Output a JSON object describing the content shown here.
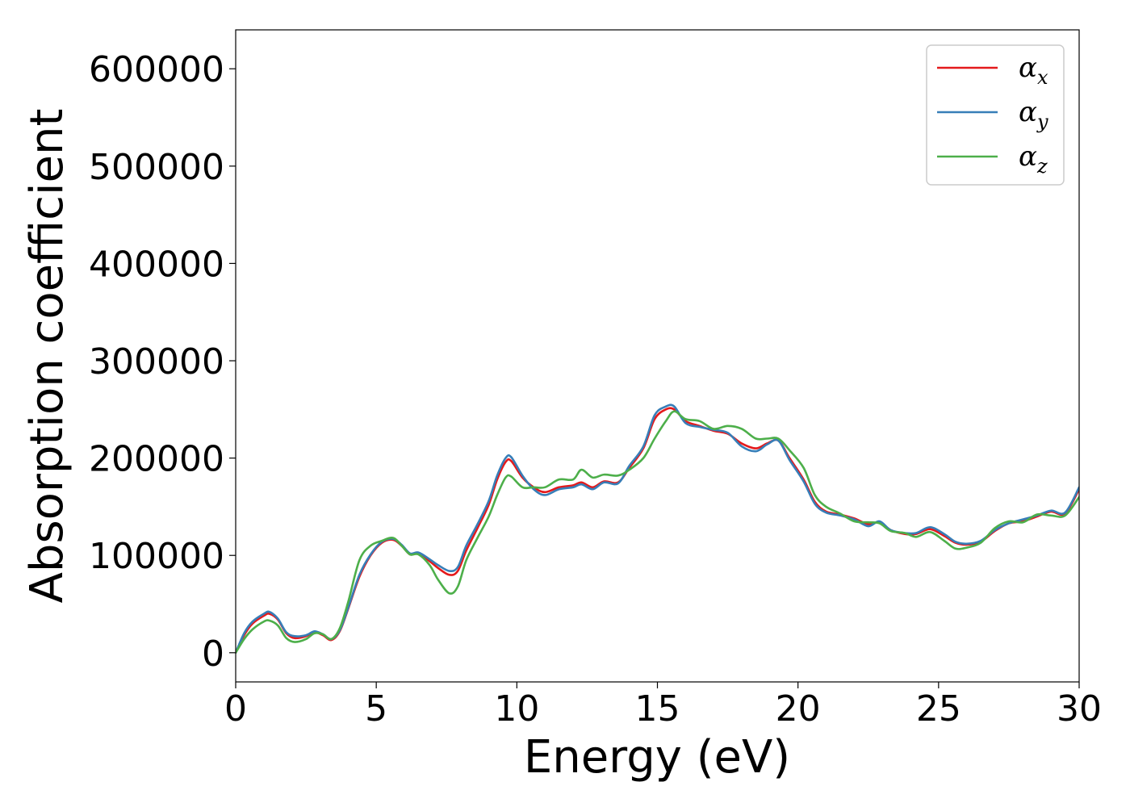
{
  "chart_data": {
    "type": "line",
    "title": "",
    "xlabel": "Energy (eV)",
    "ylabel": "Absorption coefficient",
    "xlim": [
      0,
      30
    ],
    "ylim": [
      -30000,
      640000
    ],
    "xticks": [
      0,
      5,
      10,
      15,
      20,
      25,
      30
    ],
    "yticks": [
      0,
      100000,
      200000,
      300000,
      400000,
      500000,
      600000
    ],
    "grid": false,
    "legend": "top-right",
    "series": [
      {
        "name": "α",
        "name_sub": "x",
        "color": "#e41a1c",
        "points": [
          [
            0,
            0
          ],
          [
            0.3,
            18000
          ],
          [
            0.6,
            30000
          ],
          [
            1.0,
            38000
          ],
          [
            1.2,
            40000
          ],
          [
            1.5,
            34000
          ],
          [
            1.8,
            20000
          ],
          [
            2.1,
            15000
          ],
          [
            2.5,
            17000
          ],
          [
            2.8,
            21000
          ],
          [
            3.1,
            18000
          ],
          [
            3.4,
            13000
          ],
          [
            3.7,
            22000
          ],
          [
            4.0,
            45000
          ],
          [
            4.4,
            78000
          ],
          [
            4.8,
            100000
          ],
          [
            5.2,
            113000
          ],
          [
            5.6,
            116000
          ],
          [
            5.9,
            110000
          ],
          [
            6.2,
            101000
          ],
          [
            6.5,
            102000
          ],
          [
            6.9,
            94000
          ],
          [
            7.2,
            87000
          ],
          [
            7.6,
            80000
          ],
          [
            7.9,
            84000
          ],
          [
            8.2,
            105000
          ],
          [
            8.6,
            128000
          ],
          [
            9.0,
            152000
          ],
          [
            9.3,
            178000
          ],
          [
            9.6,
            196000
          ],
          [
            9.8,
            197000
          ],
          [
            10.2,
            180000
          ],
          [
            10.6,
            170000
          ],
          [
            11.0,
            165000
          ],
          [
            11.5,
            170000
          ],
          [
            12.0,
            172000
          ],
          [
            12.3,
            175000
          ],
          [
            12.7,
            170000
          ],
          [
            13.1,
            176000
          ],
          [
            13.6,
            175000
          ],
          [
            14.0,
            190000
          ],
          [
            14.5,
            210000
          ],
          [
            14.9,
            240000
          ],
          [
            15.3,
            250000
          ],
          [
            15.6,
            250000
          ],
          [
            16.0,
            238000
          ],
          [
            16.5,
            233000
          ],
          [
            17.0,
            228000
          ],
          [
            17.5,
            225000
          ],
          [
            18.0,
            215000
          ],
          [
            18.5,
            210000
          ],
          [
            18.9,
            215000
          ],
          [
            19.3,
            218000
          ],
          [
            19.7,
            200000
          ],
          [
            20.2,
            178000
          ],
          [
            20.6,
            155000
          ],
          [
            21.0,
            145000
          ],
          [
            21.5,
            142000
          ],
          [
            22.0,
            138000
          ],
          [
            22.5,
            132000
          ],
          [
            22.9,
            134000
          ],
          [
            23.3,
            126000
          ],
          [
            23.8,
            122000
          ],
          [
            24.2,
            122000
          ],
          [
            24.7,
            127000
          ],
          [
            25.2,
            120000
          ],
          [
            25.6,
            113000
          ],
          [
            26.0,
            111000
          ],
          [
            26.5,
            114000
          ],
          [
            27.0,
            125000
          ],
          [
            27.5,
            133000
          ],
          [
            28.0,
            135000
          ],
          [
            28.5,
            140000
          ],
          [
            29.0,
            145000
          ],
          [
            29.5,
            143000
          ],
          [
            30,
            168000
          ]
        ]
      },
      {
        "name": "α",
        "name_sub": "y",
        "color": "#377eb8",
        "points": [
          [
            0,
            0
          ],
          [
            0.3,
            20000
          ],
          [
            0.6,
            32000
          ],
          [
            1.0,
            40000
          ],
          [
            1.2,
            42000
          ],
          [
            1.5,
            35000
          ],
          [
            1.8,
            21000
          ],
          [
            2.1,
            17000
          ],
          [
            2.5,
            18000
          ],
          [
            2.8,
            22000
          ],
          [
            3.1,
            19000
          ],
          [
            3.4,
            14000
          ],
          [
            3.7,
            23000
          ],
          [
            4.0,
            46000
          ],
          [
            4.4,
            80000
          ],
          [
            4.8,
            101000
          ],
          [
            5.2,
            114000
          ],
          [
            5.6,
            117000
          ],
          [
            5.9,
            111000
          ],
          [
            6.2,
            102000
          ],
          [
            6.5,
            103000
          ],
          [
            6.9,
            96000
          ],
          [
            7.2,
            90000
          ],
          [
            7.6,
            84000
          ],
          [
            7.9,
            88000
          ],
          [
            8.2,
            110000
          ],
          [
            8.6,
            132000
          ],
          [
            9.0,
            156000
          ],
          [
            9.3,
            182000
          ],
          [
            9.6,
            200000
          ],
          [
            9.8,
            201000
          ],
          [
            10.2,
            182000
          ],
          [
            10.6,
            168000
          ],
          [
            11.0,
            162000
          ],
          [
            11.5,
            168000
          ],
          [
            12.0,
            170000
          ],
          [
            12.3,
            173000
          ],
          [
            12.7,
            168000
          ],
          [
            13.1,
            175000
          ],
          [
            13.6,
            174000
          ],
          [
            14.0,
            192000
          ],
          [
            14.5,
            212000
          ],
          [
            14.9,
            244000
          ],
          [
            15.3,
            253000
          ],
          [
            15.6,
            253000
          ],
          [
            16.0,
            236000
          ],
          [
            16.5,
            232000
          ],
          [
            17.0,
            229000
          ],
          [
            17.5,
            226000
          ],
          [
            18.0,
            212000
          ],
          [
            18.5,
            207000
          ],
          [
            18.9,
            214000
          ],
          [
            19.3,
            218000
          ],
          [
            19.7,
            198000
          ],
          [
            20.2,
            176000
          ],
          [
            20.6,
            153000
          ],
          [
            21.0,
            144000
          ],
          [
            21.5,
            141000
          ],
          [
            22.0,
            137000
          ],
          [
            22.5,
            130000
          ],
          [
            22.9,
            135000
          ],
          [
            23.3,
            126000
          ],
          [
            23.8,
            123000
          ],
          [
            24.2,
            123000
          ],
          [
            24.7,
            129000
          ],
          [
            25.2,
            122000
          ],
          [
            25.6,
            114000
          ],
          [
            26.0,
            112000
          ],
          [
            26.5,
            115000
          ],
          [
            27.0,
            126000
          ],
          [
            27.5,
            133000
          ],
          [
            28.0,
            137000
          ],
          [
            28.5,
            141000
          ],
          [
            29.0,
            146000
          ],
          [
            29.5,
            144000
          ],
          [
            30,
            170000
          ]
        ]
      },
      {
        "name": "α",
        "name_sub": "z",
        "color": "#4daf4a",
        "points": [
          [
            0,
            0
          ],
          [
            0.3,
            14000
          ],
          [
            0.6,
            24000
          ],
          [
            1.0,
            32000
          ],
          [
            1.2,
            33000
          ],
          [
            1.5,
            28000
          ],
          [
            1.8,
            15000
          ],
          [
            2.1,
            11000
          ],
          [
            2.5,
            14000
          ],
          [
            2.8,
            20000
          ],
          [
            3.1,
            19000
          ],
          [
            3.4,
            14000
          ],
          [
            3.7,
            25000
          ],
          [
            4.0,
            52000
          ],
          [
            4.4,
            95000
          ],
          [
            4.8,
            110000
          ],
          [
            5.2,
            115000
          ],
          [
            5.6,
            118000
          ],
          [
            5.9,
            110000
          ],
          [
            6.2,
            101000
          ],
          [
            6.5,
            101000
          ],
          [
            6.9,
            90000
          ],
          [
            7.2,
            75000
          ],
          [
            7.6,
            61000
          ],
          [
            7.9,
            68000
          ],
          [
            8.2,
            95000
          ],
          [
            8.6,
            118000
          ],
          [
            9.0,
            140000
          ],
          [
            9.3,
            162000
          ],
          [
            9.6,
            180000
          ],
          [
            9.8,
            181000
          ],
          [
            10.2,
            170000
          ],
          [
            10.6,
            170000
          ],
          [
            11.0,
            170000
          ],
          [
            11.5,
            178000
          ],
          [
            12.0,
            178000
          ],
          [
            12.3,
            188000
          ],
          [
            12.7,
            180000
          ],
          [
            13.1,
            183000
          ],
          [
            13.6,
            182000
          ],
          [
            14.0,
            188000
          ],
          [
            14.5,
            200000
          ],
          [
            14.9,
            220000
          ],
          [
            15.3,
            238000
          ],
          [
            15.6,
            248000
          ],
          [
            16.0,
            240000
          ],
          [
            16.5,
            238000
          ],
          [
            17.0,
            230000
          ],
          [
            17.5,
            233000
          ],
          [
            18.0,
            230000
          ],
          [
            18.5,
            220000
          ],
          [
            18.9,
            220000
          ],
          [
            19.3,
            220000
          ],
          [
            19.7,
            208000
          ],
          [
            20.2,
            190000
          ],
          [
            20.6,
            162000
          ],
          [
            21.0,
            150000
          ],
          [
            21.5,
            143000
          ],
          [
            22.0,
            135000
          ],
          [
            22.5,
            134000
          ],
          [
            22.9,
            133000
          ],
          [
            23.3,
            125000
          ],
          [
            23.8,
            123000
          ],
          [
            24.2,
            119000
          ],
          [
            24.7,
            124000
          ],
          [
            25.2,
            115000
          ],
          [
            25.6,
            107000
          ],
          [
            26.0,
            108000
          ],
          [
            26.5,
            113000
          ],
          [
            27.0,
            128000
          ],
          [
            27.5,
            135000
          ],
          [
            28.0,
            134000
          ],
          [
            28.5,
            142000
          ],
          [
            29.0,
            141000
          ],
          [
            29.5,
            141000
          ],
          [
            30,
            160000
          ]
        ]
      }
    ]
  }
}
